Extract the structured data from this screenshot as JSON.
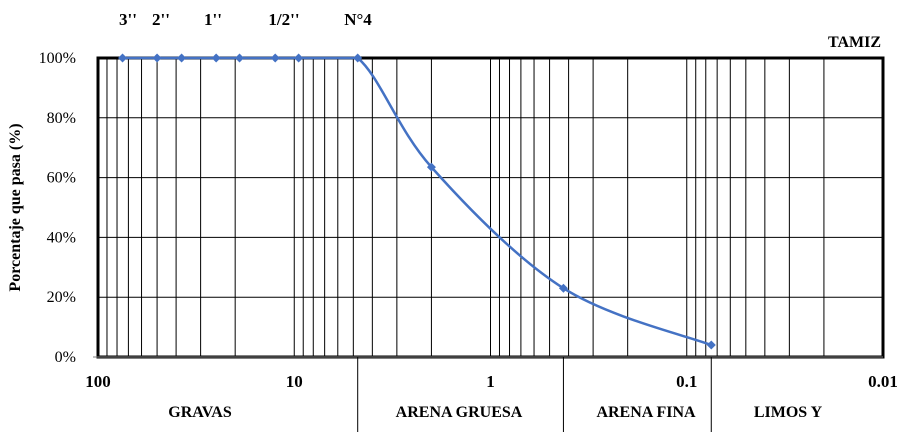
{
  "chart_data": {
    "type": "line",
    "title": "",
    "xscale": "log",
    "xreverse": true,
    "xlim": [
      100,
      0.01
    ],
    "ylim": [
      0,
      100
    ],
    "ylabel": "Porcentaje que pasa (%)",
    "x_axis_caption": "TAMIZ",
    "xticks": [
      {
        "value": 100,
        "label": "100"
      },
      {
        "value": 10,
        "label": "10"
      },
      {
        "value": 1,
        "label": "1"
      },
      {
        "value": 0.1,
        "label": "0.1"
      },
      {
        "value": 0.01,
        "label": "0.01"
      }
    ],
    "yticks": [
      {
        "value": 0,
        "label": "0%"
      },
      {
        "value": 20,
        "label": "20%"
      },
      {
        "value": 40,
        "label": "40%"
      },
      {
        "value": 60,
        "label": "60%"
      },
      {
        "value": 80,
        "label": "80%"
      },
      {
        "value": 100,
        "label": "100%"
      }
    ],
    "sieves": [
      {
        "label": "3''",
        "value": 75
      },
      {
        "label": "2''",
        "value": 50
      },
      {
        "label": "1''",
        "value": 25
      },
      {
        "label": "1/2''",
        "value": 12.5
      },
      {
        "label": "N°4",
        "value": 4.75
      }
    ],
    "zones": [
      {
        "label": "GRAVAS",
        "from": 100,
        "to": 4.75
      },
      {
        "label": "ARENA GRUESA",
        "from": 4.75,
        "to": 0.425
      },
      {
        "label": "ARENA FINA",
        "from": 0.425,
        "to": 0.075
      },
      {
        "label": "LIMOS Y",
        "from": 0.075,
        "to": 0.01
      }
    ],
    "grid": true,
    "color": "#4472C4",
    "series": [
      {
        "name": "",
        "x": [
          75,
          50,
          37.5,
          25,
          19,
          12.5,
          9.5,
          4.75,
          2.0,
          0.425,
          0.075
        ],
        "y": [
          100,
          100,
          100,
          100,
          100,
          100,
          100,
          100,
          63.5,
          23,
          4
        ]
      }
    ]
  }
}
